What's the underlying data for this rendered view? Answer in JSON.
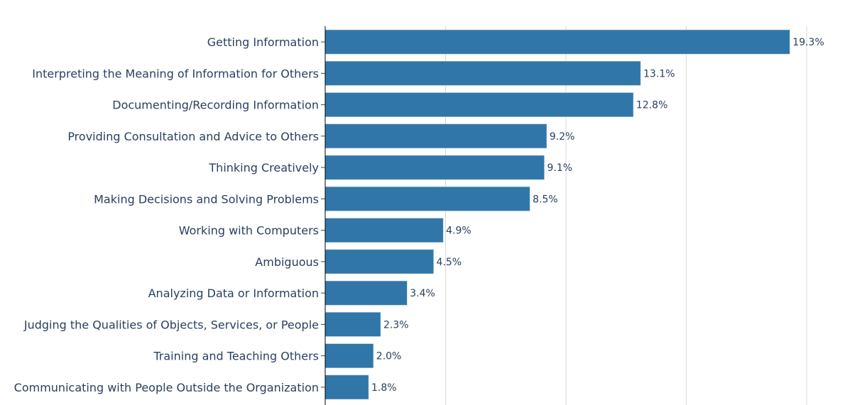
{
  "chart_data": {
    "type": "bar",
    "orientation": "horizontal",
    "title": "",
    "xlabel": "",
    "ylabel": "",
    "categories": [
      "Getting Information",
      "Interpreting the Meaning of Information for Others",
      "Documenting/Recording Information",
      "Providing Consultation and Advice to Others",
      "Thinking Creatively",
      "Making Decisions and Solving Problems",
      "Working with Computers",
      "Ambiguous",
      "Analyzing Data or Information",
      "Judging the Qualities of Objects, Services, or People",
      "Training and Teaching Others",
      "Communicating with People Outside the Organization"
    ],
    "values": [
      19.3,
      13.1,
      12.8,
      9.2,
      9.1,
      8.5,
      4.9,
      4.5,
      3.4,
      2.3,
      2.0,
      1.8
    ],
    "data_labels": [
      "19.3%",
      "13.1%",
      "12.8%",
      "9.2%",
      "9.1%",
      "8.5%",
      "4.9%",
      "4.5%",
      "3.4%",
      "2.3%",
      "2.0%",
      "1.8%"
    ],
    "xlim": [
      0,
      22.3
    ],
    "x_gridlines": [
      5,
      10,
      15,
      20
    ],
    "grid": true,
    "legend": "none",
    "colors": {
      "bar": "#3176a8",
      "bar_border": "#9fc2e0",
      "text": "#2a3f5f",
      "grid": "#d9d9d9",
      "axis": "#000000"
    }
  }
}
